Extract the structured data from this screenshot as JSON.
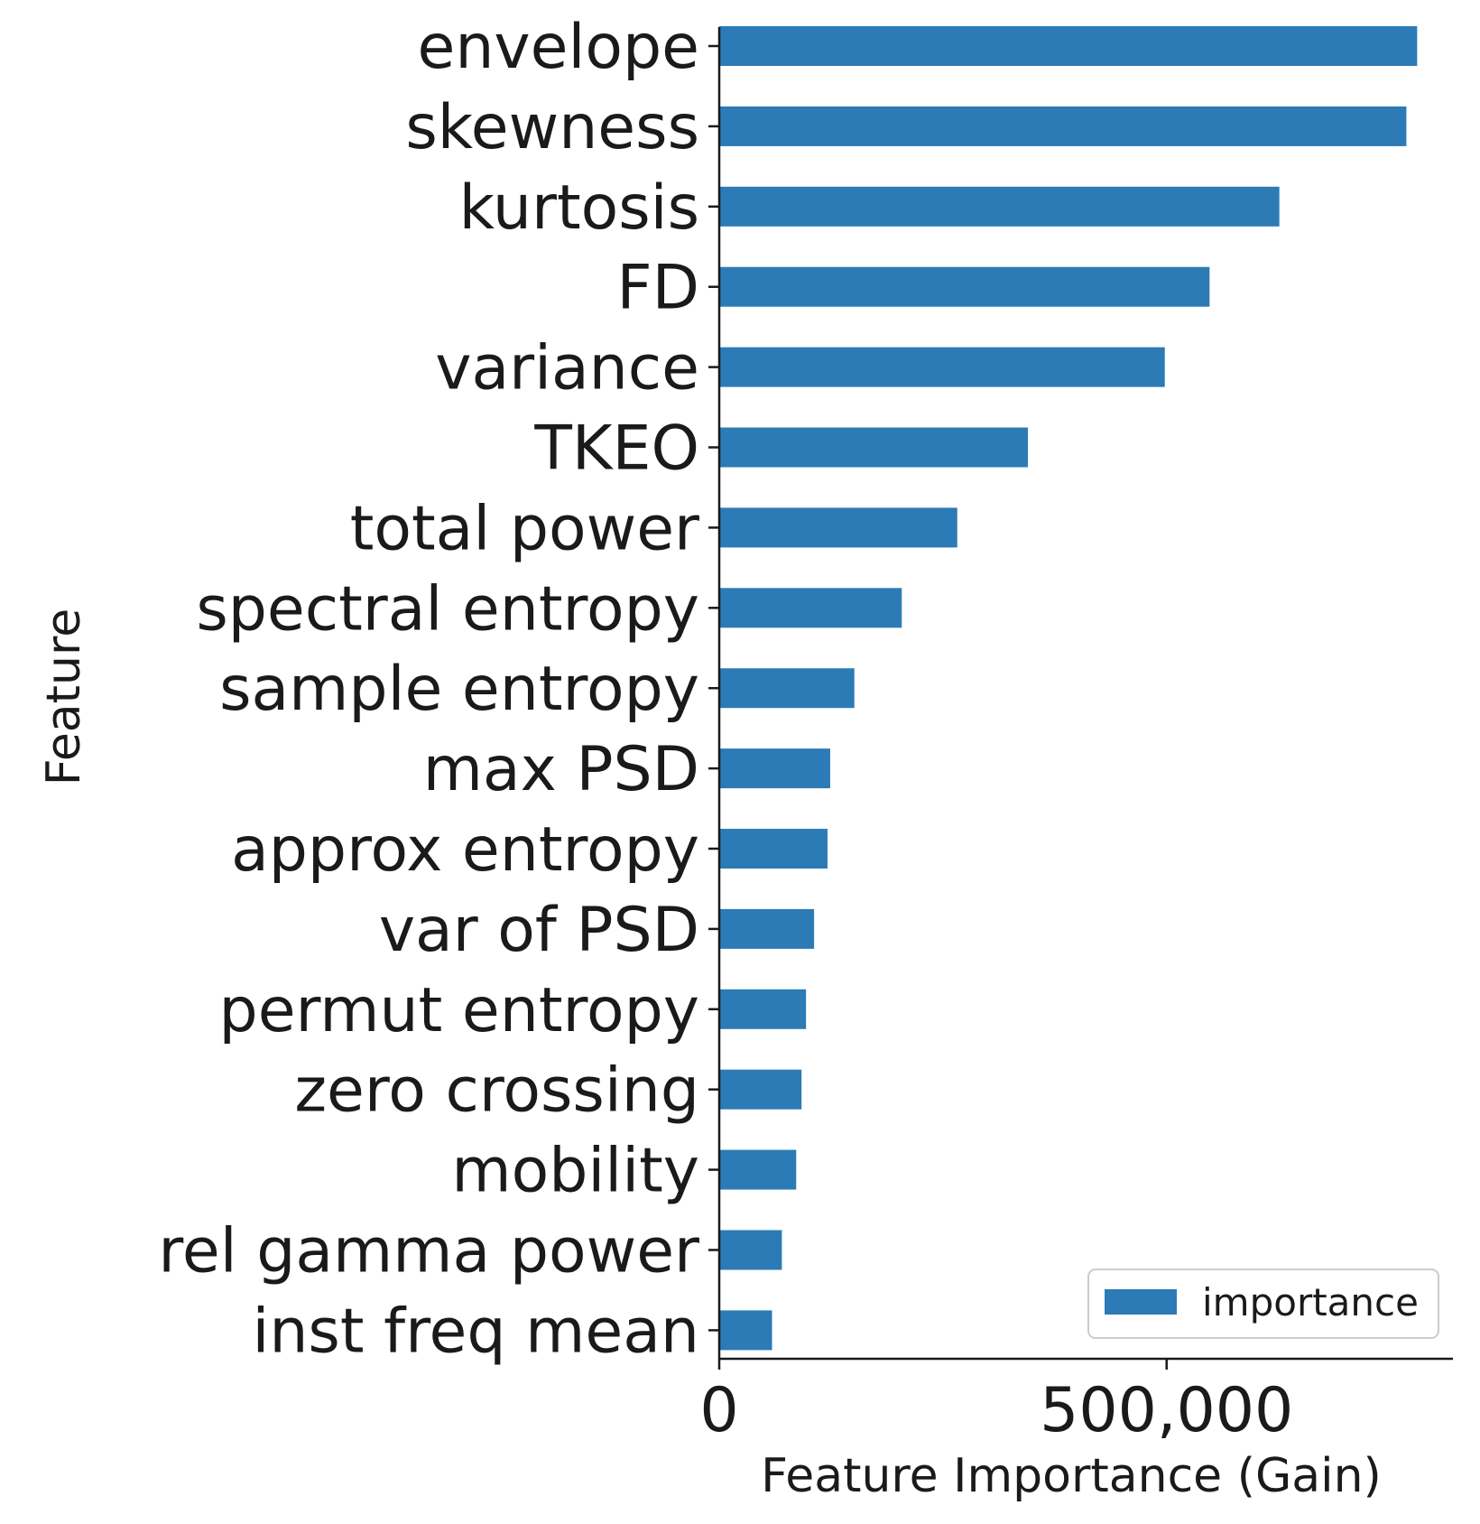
{
  "chart_data": {
    "type": "bar",
    "orientation": "horizontal",
    "categories": [
      "envelope",
      "skewness",
      "kurtosis",
      "FD",
      "variance",
      "TKEO",
      "total power",
      "spectral entropy",
      "sample entropy",
      "max PSD",
      "approx entropy",
      "var of PSD",
      "permut entropy",
      "zero crossing",
      "mobility",
      "rel gamma power",
      "inst freq mean"
    ],
    "series": [
      {
        "name": "importance",
        "color": "#2c7bb6",
        "values": [
          780000,
          768000,
          626000,
          548000,
          498000,
          345000,
          266000,
          204000,
          151000,
          124000,
          121000,
          106000,
          97000,
          92000,
          86000,
          70000,
          59000
        ]
      }
    ],
    "xlabel": "Feature Importance (Gain)",
    "ylabel": "Feature",
    "xlim": [
      0,
      820000
    ],
    "x_ticks": [
      0,
      500000
    ],
    "x_tick_labels": [
      "0",
      "500,000"
    ],
    "legend_position": "lower-right",
    "grid": false
  }
}
